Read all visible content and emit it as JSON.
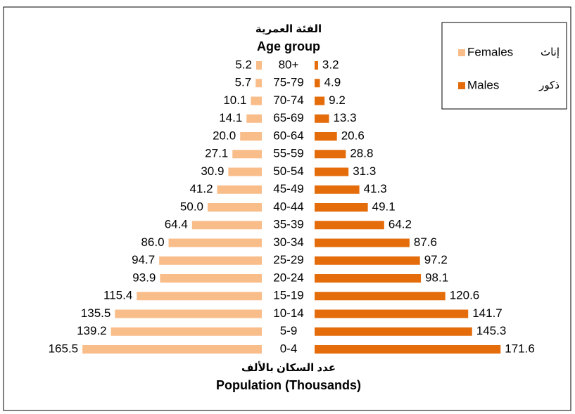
{
  "chart_data": {
    "type": "pyramid",
    "y_title_ar": "الفئة العمرية",
    "y_title": "Age group",
    "x_title_ar": "عدد السكان بالألف",
    "x_title": "Population (Thousands)",
    "categories": [
      "0-4",
      "5-9",
      "10-14",
      "15-19",
      "20-24",
      "25-29",
      "30-34",
      "35-39",
      "40-44",
      "45-49",
      "50-54",
      "55-59",
      "60-64",
      "65-69",
      "70-74",
      "75-79",
      "80+"
    ],
    "series": [
      {
        "name": "Females",
        "name_ar": "إناث",
        "color": "#f9bd8a",
        "values": [
          165.5,
          139.2,
          135.5,
          115.4,
          93.9,
          94.7,
          86.0,
          64.4,
          50.0,
          41.2,
          30.9,
          27.1,
          20.0,
          14.1,
          10.1,
          5.7,
          5.2
        ],
        "value_labels": [
          "165.5",
          "139.2",
          "135.5",
          "115.4",
          "93.9",
          "94.7",
          "86.0",
          "64.4",
          "50.0",
          "41.2",
          "30.9",
          "27.1",
          "20.0",
          "14.1",
          "10.1",
          "5.7",
          "5.2"
        ]
      },
      {
        "name": "Males",
        "name_ar": "ذكور",
        "color": "#e46c0a",
        "values": [
          171.6,
          145.3,
          141.7,
          120.6,
          98.1,
          97.2,
          87.6,
          64.2,
          49.1,
          41.3,
          31.3,
          28.8,
          20.6,
          13.3,
          9.2,
          4.9,
          3.2
        ],
        "value_labels": [
          "171.6",
          "145.3",
          "141.7",
          "120.6",
          "98.1",
          "97.2",
          "87.6",
          "64.2",
          "49.1",
          "41.3",
          "31.3",
          "28.8",
          "20.6",
          "13.3",
          "9.2",
          "4.9",
          "3.2"
        ]
      }
    ],
    "legend": "upper right"
  }
}
